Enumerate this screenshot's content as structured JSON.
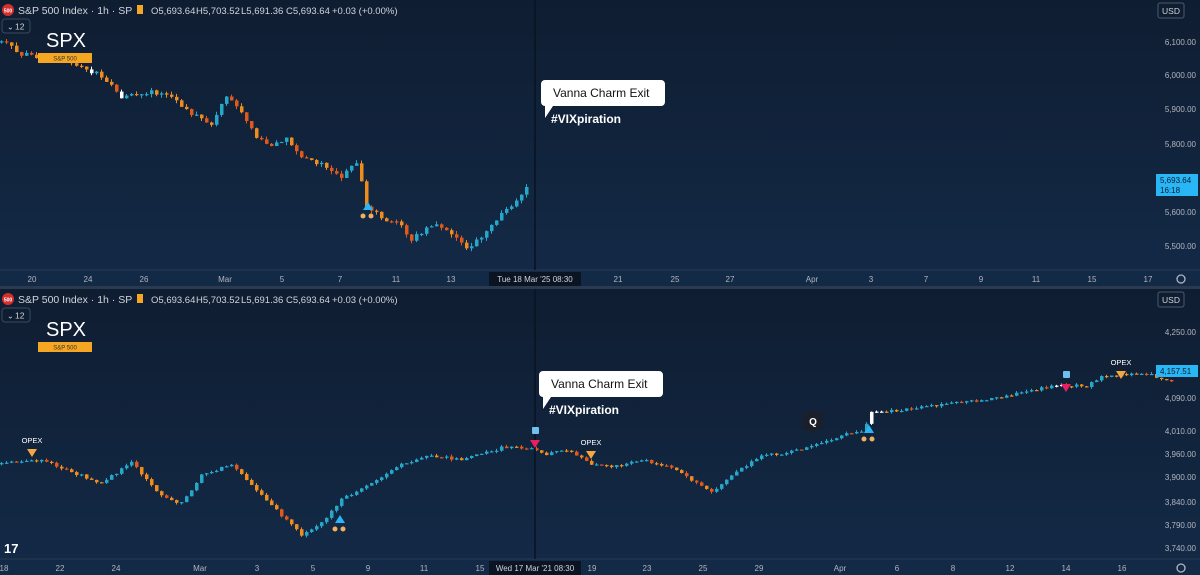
{
  "header": {
    "symbol_title": "S&P 500 Index · 1h · SP",
    "ohlc": [
      {
        "k": "O",
        "v": "5,693.64"
      },
      {
        "k": "H",
        "v": "5,703.52"
      },
      {
        "k": "L",
        "v": "5,691.36"
      },
      {
        "k": "C",
        "v": "5,693.64"
      }
    ],
    "change": "+0.03 (+0.00%)",
    "exchange_badge": "500",
    "interval_chip": "12",
    "currency": "USD"
  },
  "colors": {
    "up": "#26a6c9",
    "down": "#f08c1e",
    "down_dark": "#e0581a",
    "white": "#ffffff",
    "marker_teal": "#29b6f6",
    "marker_pink": "#e91e63",
    "marker_orange": "#f5a742",
    "label_bg": "#f5a623",
    "crosshair": "#0a1422"
  },
  "chart_data": [
    {
      "type": "candlestick",
      "title": "SPX",
      "series_label": "S&P 500",
      "y_ticks": [
        "6,100.00",
        "6,000.00",
        "5,900.00",
        "5,800.00",
        "5,700.00",
        "5,600.00",
        "5,500.00"
      ],
      "ylim": [
        5470,
        6160
      ],
      "x_ticks": [
        "20",
        "24",
        "26",
        "Mar",
        "5",
        "7",
        "11",
        "13",
        "21",
        "25",
        "27",
        "Apr",
        "3",
        "7",
        "9",
        "11",
        "15",
        "17"
      ],
      "crosshair_label": "Tue 18 Mar '25   08:30",
      "last_price": "5,693.64",
      "countdown": "16:18",
      "path_keypoints": [
        [
          0,
          6125
        ],
        [
          20,
          6090
        ],
        [
          40,
          6080
        ],
        [
          60,
          6070
        ],
        [
          80,
          6050
        ],
        [
          95,
          6030
        ],
        [
          105,
          6010
        ],
        [
          120,
          5960
        ],
        [
          150,
          5975
        ],
        [
          170,
          5960
        ],
        [
          190,
          5910
        ],
        [
          210,
          5880
        ],
        [
          225,
          5960
        ],
        [
          240,
          5920
        ],
        [
          255,
          5840
        ],
        [
          270,
          5820
        ],
        [
          285,
          5840
        ],
        [
          300,
          5780
        ],
        [
          320,
          5760
        ],
        [
          340,
          5720
        ],
        [
          355,
          5770
        ],
        [
          365,
          5640
        ],
        [
          380,
          5600
        ],
        [
          395,
          5590
        ],
        [
          410,
          5540
        ],
        [
          430,
          5580
        ],
        [
          445,
          5570
        ],
        [
          465,
          5510
        ],
        [
          480,
          5540
        ],
        [
          495,
          5600
        ],
        [
          510,
          5640
        ],
        [
          525,
          5693
        ]
      ],
      "annotations": [
        {
          "text": "Vanna Charm Exit",
          "style": "callout"
        },
        {
          "text": "#VIXpiration",
          "style": "bold"
        }
      ],
      "markers": [
        {
          "kind": "up-triangle",
          "color": "teal",
          "at": 368
        }
      ]
    },
    {
      "type": "candlestick",
      "title": "SPX",
      "series_label": "S&P 500",
      "y_ticks": [
        "4,250.00",
        "4,170.00",
        "4,090.00",
        "4,010.00",
        "3,960.00",
        "3,900.00",
        "3,840.00",
        "3,790.00",
        "3,740.00"
      ],
      "ylim": [
        3720,
        4290
      ],
      "x_ticks": [
        "18",
        "22",
        "24",
        "Mar",
        "3",
        "5",
        "9",
        "11",
        "15",
        "19",
        "23",
        "25",
        "29",
        "Apr",
        "6",
        "8",
        "12",
        "14",
        "16"
      ],
      "crosshair_label": "Wed 17 Mar '21   08:30",
      "last_price": "4,157.51",
      "path_keypoints": [
        [
          0,
          3950
        ],
        [
          40,
          3960
        ],
        [
          70,
          3930
        ],
        [
          100,
          3900
        ],
        [
          130,
          3955
        ],
        [
          160,
          3870
        ],
        [
          180,
          3850
        ],
        [
          200,
          3920
        ],
        [
          230,
          3950
        ],
        [
          260,
          3870
        ],
        [
          280,
          3820
        ],
        [
          300,
          3770
        ],
        [
          320,
          3800
        ],
        [
          340,
          3860
        ],
        [
          370,
          3900
        ],
        [
          400,
          3950
        ],
        [
          430,
          3970
        ],
        [
          460,
          3960
        ],
        [
          500,
          3990
        ],
        [
          525,
          3990
        ],
        [
          545,
          3975
        ],
        [
          565,
          3985
        ],
        [
          590,
          3950
        ],
        [
          610,
          3940
        ],
        [
          640,
          3960
        ],
        [
          670,
          3940
        ],
        [
          690,
          3910
        ],
        [
          710,
          3880
        ],
        [
          730,
          3920
        ],
        [
          760,
          3970
        ],
        [
          790,
          3980
        ],
        [
          820,
          4000
        ],
        [
          845,
          4025
        ],
        [
          862,
          4030
        ],
        [
          870,
          4080
        ],
        [
          900,
          4085
        ],
        [
          940,
          4100
        ],
        [
          980,
          4110
        ],
        [
          1020,
          4130
        ],
        [
          1060,
          4150
        ],
        [
          1085,
          4145
        ],
        [
          1100,
          4170
        ],
        [
          1140,
          4180
        ],
        [
          1170,
          4160
        ]
      ],
      "annotations": [
        {
          "text": "Vanna Charm Exit",
          "style": "callout"
        },
        {
          "text": "#VIXpiration",
          "style": "bold"
        },
        {
          "text": "Q",
          "style": "tag"
        },
        {
          "text": "OPEX",
          "style": "marker-label"
        },
        {
          "text": "OPEX",
          "style": "marker-label"
        },
        {
          "text": "OPEX",
          "style": "marker-label"
        }
      ],
      "markers": [
        {
          "kind": "down-triangle",
          "color": "orange",
          "label": "OPEX",
          "at": 32
        },
        {
          "kind": "up-triangle",
          "color": "teal",
          "at": 340
        },
        {
          "kind": "down-triangle",
          "color": "pink",
          "at": 535
        },
        {
          "kind": "down-triangle",
          "color": "orange",
          "label": "OPEX",
          "at": 591
        },
        {
          "kind": "up-triangle",
          "color": "teal",
          "at": 869
        },
        {
          "kind": "down-triangle",
          "color": "pink",
          "at": 1066
        },
        {
          "kind": "down-triangle",
          "color": "orange",
          "label": "OPEX",
          "at": 1121
        }
      ]
    }
  ]
}
